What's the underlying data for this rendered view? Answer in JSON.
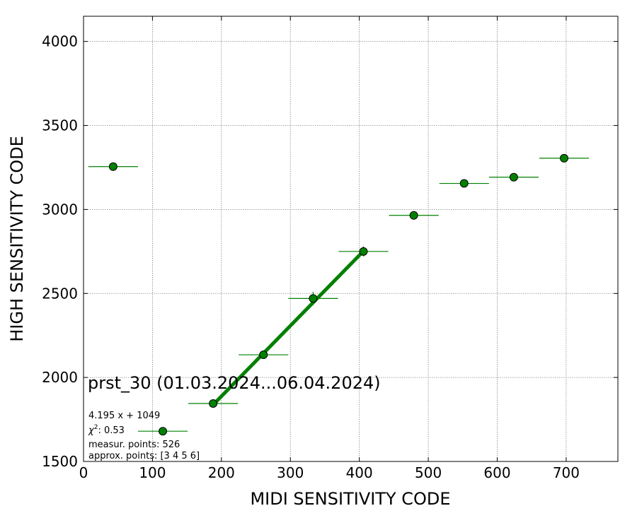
{
  "chart_data": {
    "type": "scatter",
    "title": "",
    "xlabel": "MIDI SENSITIVITY CODE",
    "ylabel": "HIGH SENSITIVITY CODE",
    "xlim": [
      0,
      775
    ],
    "ylim": [
      1500,
      4150
    ],
    "xticks": [
      "0",
      "100",
      "200",
      "300",
      "400",
      "500",
      "600",
      "700"
    ],
    "yticks": [
      "1500",
      "2000",
      "2500",
      "3000",
      "3500",
      "4000"
    ],
    "grid": true,
    "colors": {
      "points": "#008000",
      "fit": "#008000",
      "edge": "#000000"
    },
    "points": [
      {
        "x": 43,
        "y": 3255,
        "xerr": 36,
        "yerr": 10
      },
      {
        "x": 115,
        "y": 1680,
        "xerr": 36,
        "yerr": 10
      },
      {
        "x": 188,
        "y": 1845,
        "xerr": 36,
        "yerr": 12
      },
      {
        "x": 261,
        "y": 2135,
        "xerr": 36,
        "yerr": 15
      },
      {
        "x": 333,
        "y": 2470,
        "xerr": 36,
        "yerr": 40
      },
      {
        "x": 406,
        "y": 2750,
        "xerr": 36,
        "yerr": 30
      },
      {
        "x": 479,
        "y": 2965,
        "xerr": 36,
        "yerr": 25
      },
      {
        "x": 552,
        "y": 3155,
        "xerr": 36,
        "yerr": 20
      },
      {
        "x": 624,
        "y": 3192,
        "xerr": 36,
        "yerr": 20
      },
      {
        "x": 697,
        "y": 3305,
        "xerr": 36,
        "yerr": 10
      }
    ],
    "fit": {
      "slope": 4.195,
      "intercept": 1049,
      "x_range": [
        188,
        406
      ]
    },
    "annotations": {
      "dataset": "prst_30 (01.03.2024...06.04.2024)",
      "equation": "4.195 x + 1049",
      "chi2": "0.53",
      "measured": "measur. points: 526",
      "approx": "approx. points: [3 4 5 6]"
    }
  }
}
